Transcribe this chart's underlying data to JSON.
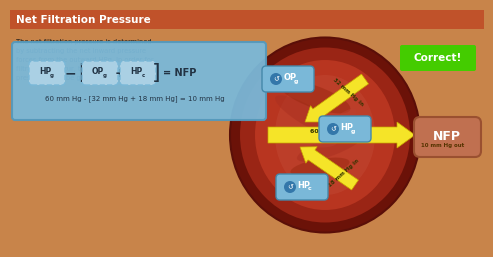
{
  "title": "Net Filtration Pressure",
  "title_bg": "#c0522a",
  "title_color": "#ffffff",
  "bg_color": "#c8844a",
  "body_bg": "#c8844a",
  "description": "The net filtration pressure is determined\nby subtracting the net inward pressure\nforces from the outward HPg. In order for\nfiltration to occur, the net filtration\npressure must be greater than zero.",
  "desc_color": "#1a1a1a",
  "formula_bg": "#7ab8d8",
  "formula_calc": "60 mm Hg - [32 mm Hg + 18 mm Hg] = 10 mm Hg",
  "correct_bg": "#44cc00",
  "correct_text": "Correct!",
  "nfp_text": "NFP",
  "nfp_text_color": "#ffffff",
  "label_opg": "OPg",
  "label_hpg": "HPg",
  "label_hpc": "HPc",
  "arrow_color": "#f5e428",
  "label_32": "32 mm Hg in",
  "label_60_out": "60 mm Hg out",
  "label_18": "18 mm Hg in",
  "label_10_out": "10 mm Hg out",
  "blob_color": "#7ab8d8",
  "kidney_outer": "#7a1a12",
  "kidney_ring": "#a03020",
  "kidney_inner": "#b84030"
}
